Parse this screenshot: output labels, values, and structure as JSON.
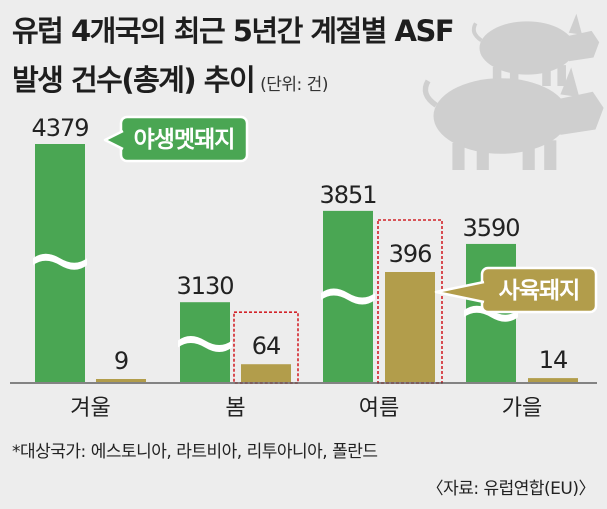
{
  "title_line1": "유럽 4개국의 최근 5년간 계절별 ASF",
  "title_line2": "발생 건수(총계) 추이",
  "unit": "(단위: 건)",
  "footnote": "*대상국가: 에스토니아, 라트비아, 리투아니아, 폴란드",
  "source": "〈자료: 유럽연합(EU)〉",
  "colors": {
    "wild": "#4aa653",
    "farm": "#b29d4b",
    "highlight_border": "#d2232a",
    "background": "#ededed",
    "pig_silhouette": "#cfcfcf"
  },
  "chart_data": {
    "type": "bar",
    "categories": [
      "겨울",
      "봄",
      "여름",
      "가을"
    ],
    "series": [
      {
        "name": "야생멧돼지",
        "values": [
          4379,
          3130,
          3851,
          3590
        ]
      },
      {
        "name": "사육돼지",
        "values": [
          9,
          64,
          396,
          14
        ]
      }
    ],
    "axis_break": true,
    "highlighted_categories": [
      "봄",
      "여름"
    ],
    "highlighted_series": "사육돼지",
    "icon": "pig-silhouette-icon"
  }
}
